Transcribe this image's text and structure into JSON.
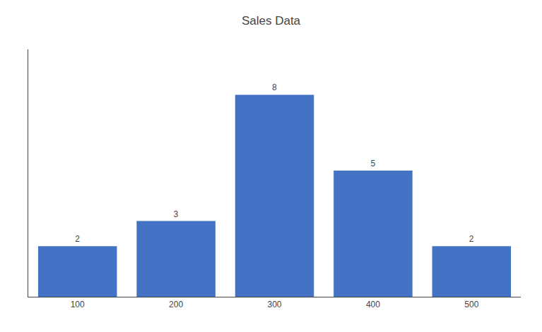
{
  "chart_data": {
    "type": "bar",
    "title": "Sales Data",
    "categories": [
      "100",
      "200",
      "300",
      "400",
      "500"
    ],
    "values": [
      2,
      3,
      8,
      5,
      2
    ],
    "color": "#4472C4",
    "ylim": [
      0,
      9.8
    ],
    "grid": false,
    "data_labels": true,
    "tick_labels": "x"
  }
}
